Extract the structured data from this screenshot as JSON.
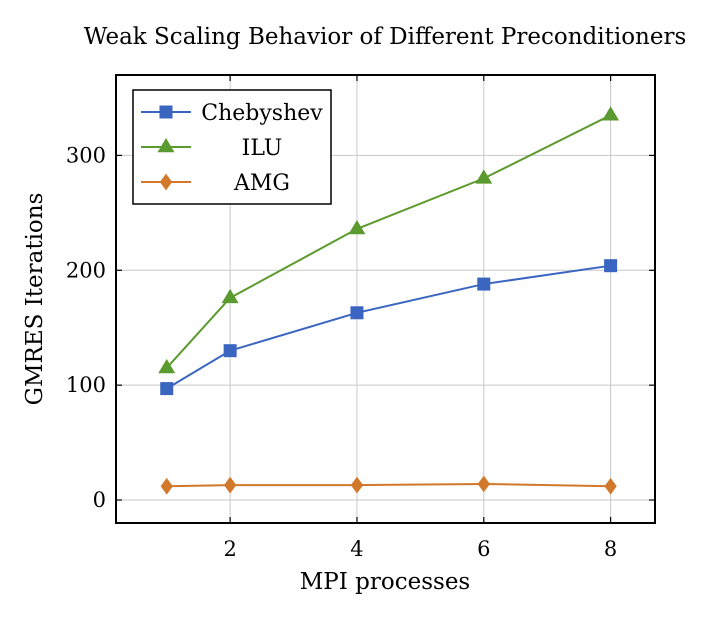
{
  "chart_data": {
    "type": "line",
    "title": "Weak Scaling Behavior of Different Preconditioners",
    "xlabel": "MPI processes",
    "ylabel": "GMRES Iterations",
    "x": [
      1,
      2,
      4,
      6,
      8
    ],
    "xticks": [
      2,
      4,
      6,
      8
    ],
    "yticks": [
      0,
      100,
      200,
      300
    ],
    "xlim": [
      0.2,
      8.7
    ],
    "ylim": [
      -20,
      370
    ],
    "grid": true,
    "legend_position": "top-left",
    "series": [
      {
        "name": "Chebyshev",
        "values": [
          97,
          130,
          163,
          188,
          204
        ],
        "color": "#3a65c0",
        "marker": "square"
      },
      {
        "name": "ILU",
        "values": [
          115,
          176,
          236,
          280,
          335
        ],
        "color": "#5b9a2e",
        "marker": "triangle"
      },
      {
        "name": "AMG",
        "values": [
          12,
          13,
          13,
          14,
          12
        ],
        "color": "#d2782a",
        "marker": "diamond"
      }
    ]
  }
}
